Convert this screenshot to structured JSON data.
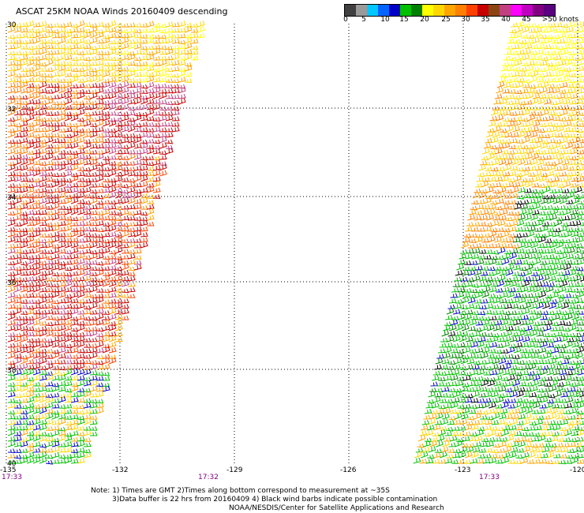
{
  "title": "ASCAT 25KM NOAA Winds 20160409 descending",
  "scale": {
    "colors": [
      "#404040",
      "#9a9a9a",
      "#00c8ff",
      "#0064ff",
      "#0000c8",
      "#00c000",
      "#008000",
      "#ffff00",
      "#ffd700",
      "#ffa500",
      "#ff7f00",
      "#ff4000",
      "#c80000",
      "#8b4513",
      "#c04080",
      "#ff00ff",
      "#c000c0",
      "#800080",
      "#5a0080"
    ],
    "labels": [
      "0",
      "5",
      "10",
      "15",
      "20",
      "25",
      "30",
      "35",
      "40",
      "45",
      ">50 knots"
    ]
  },
  "latitudes": [
    "30",
    "32",
    "34",
    "36",
    "38",
    "40"
  ],
  "longitudes": [
    "-132",
    "-129",
    "-126",
    "-123",
    "-120"
  ],
  "left_edge_label": "-135",
  "times": [
    "17:33",
    "17:32",
    "17:33"
  ],
  "notes": {
    "line1": "Note: 1) Times are GMT 2)Times along bottom correspond to measurement at ~35S",
    "line2": "3)Data buffer is 22 hrs from 20160409 4) Black wind barbs indicate possible contamination",
    "line3": "NOAA/NESDIS/Center for Satellite Applications and Research"
  }
}
